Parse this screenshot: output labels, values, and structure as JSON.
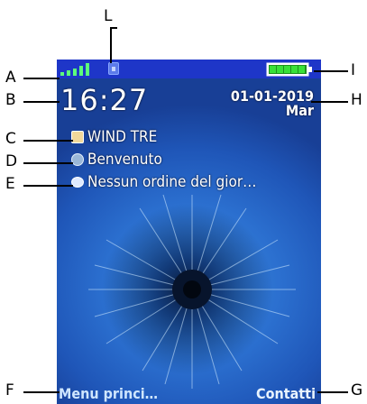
{
  "status": {
    "signal_bars": 5,
    "battery_level": 1.0
  },
  "clock": {
    "time": "16:27"
  },
  "date": {
    "value": "01-01-2019",
    "weekday": "Mar"
  },
  "info": [
    {
      "icon": "sim-card-icon",
      "text": "WIND TRE"
    },
    {
      "icon": "globe-icon",
      "text": "Benvenuto"
    },
    {
      "icon": "speech-bubble-icon",
      "text": "Nessun ordine del gior…"
    }
  ],
  "softkeys": {
    "left": "Menu princi…",
    "right": "Contatti"
  },
  "callouts": [
    "A",
    "B",
    "C",
    "D",
    "E",
    "F",
    "G",
    "H",
    "I",
    "L"
  ],
  "colors": {
    "statusbar": "#1e36c8",
    "battery": "#2bd12b",
    "text": "#ffffff"
  }
}
